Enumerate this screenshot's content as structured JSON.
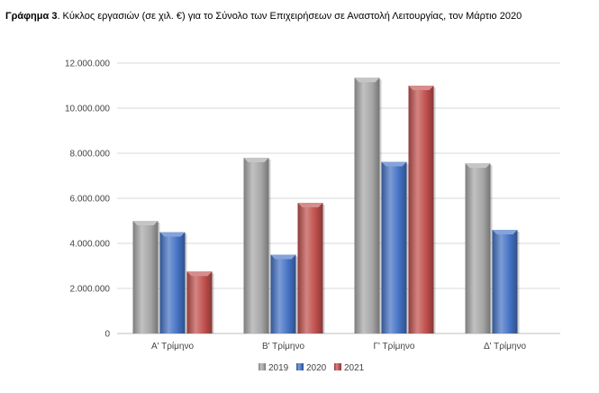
{
  "title": {
    "prefix": "Γράφημα 3",
    "text": ".  Κύκλος εργασιών (σε χιλ. €) για το Σύνολο των Επιχειρήσεων σε Αναστολή Λειτουργίας, τον Μάρτιο 2020"
  },
  "chart_data": {
    "type": "bar",
    "style": "3d-clustered",
    "categories": [
      "Α' Τρίμηνο",
      "Β' Τρίμηνο",
      "Γ' Τρίμηνο",
      "Δ' Τρίμηνο"
    ],
    "series": [
      {
        "name": "2019",
        "color": "#a6a6a6",
        "values": [
          5000000,
          7800000,
          11350000,
          7550000
        ]
      },
      {
        "name": "2020",
        "color": "#4472c4",
        "values": [
          4500000,
          3500000,
          7620000,
          4600000
        ]
      },
      {
        "name": "2021",
        "color": "#c0504d",
        "values": [
          2750000,
          5800000,
          11000000,
          null
        ]
      }
    ],
    "ylim": [
      0,
      12000000
    ],
    "yticks": [
      0,
      2000000,
      4000000,
      6000000,
      8000000,
      10000000,
      12000000
    ],
    "ytick_labels": [
      "0",
      "2.000.000",
      "4.000.000",
      "6.000.000",
      "8.000.000",
      "10.000.000",
      "12.000.000"
    ],
    "grid": true,
    "legend_position": "bottom"
  }
}
